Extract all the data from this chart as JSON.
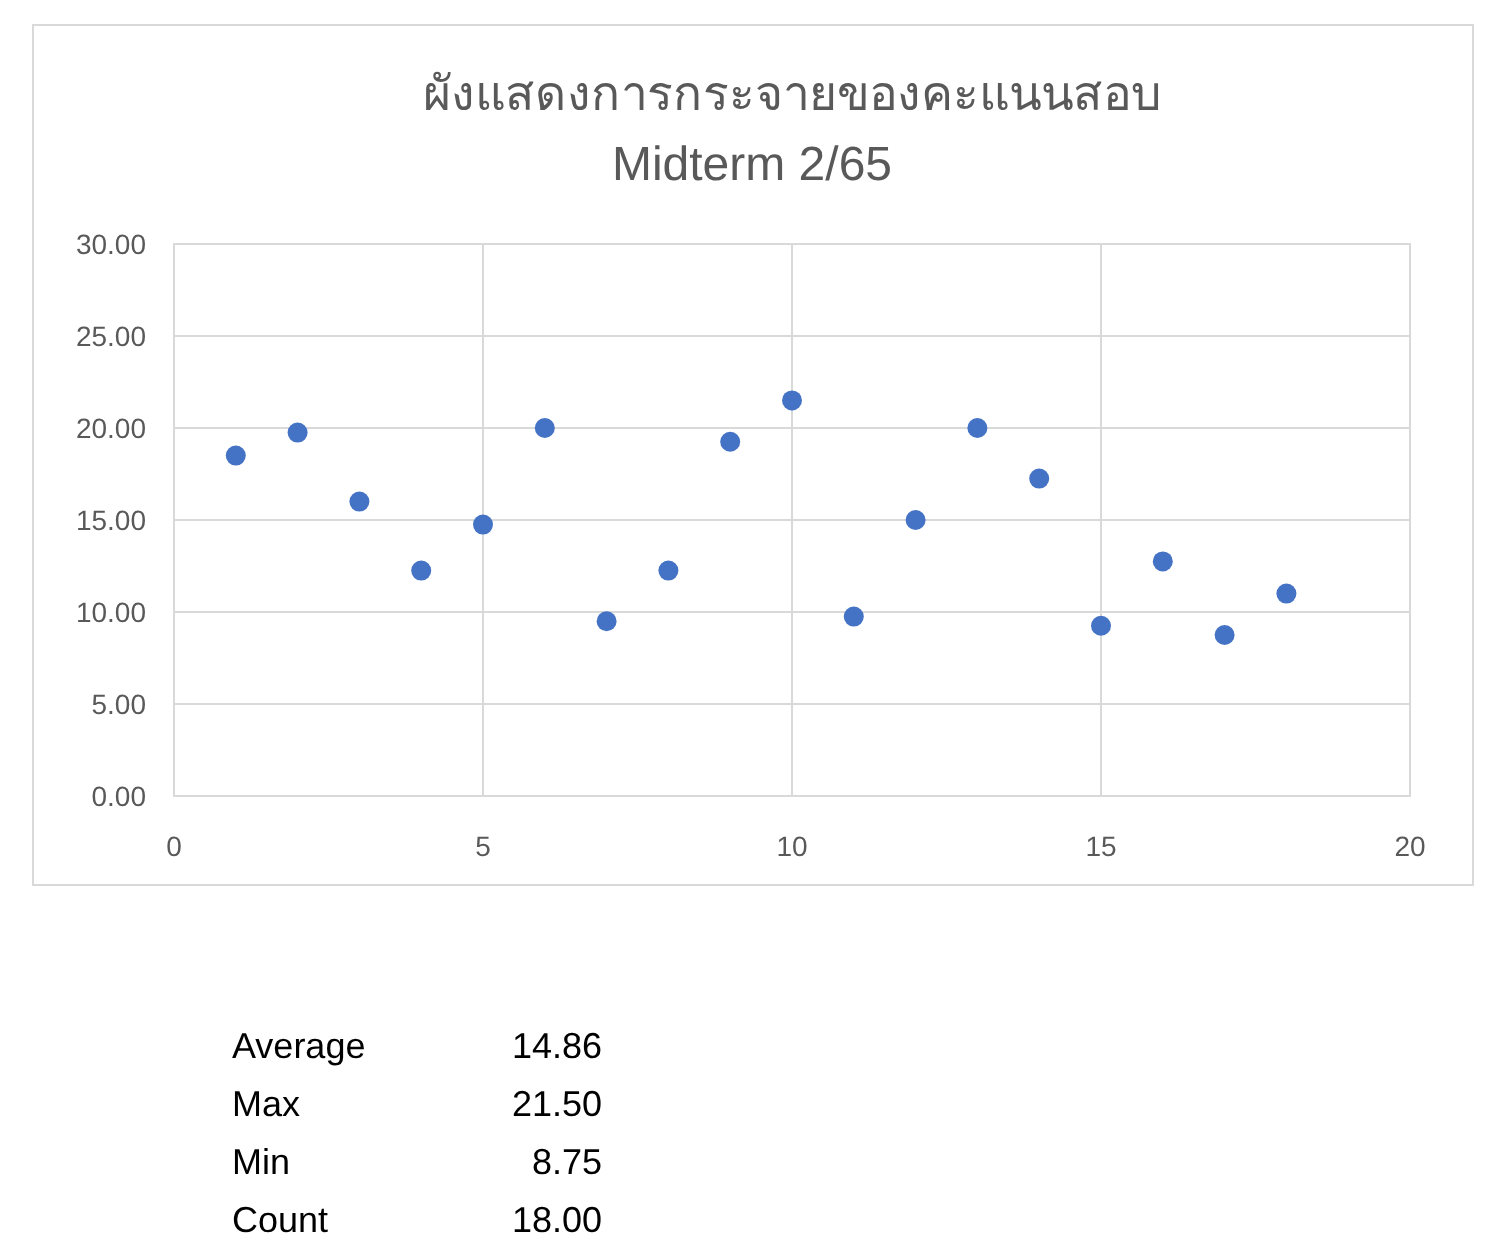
{
  "chart_data": {
    "type": "scatter",
    "title": "ผังแสดงการกระจายของคะแนนสอบ",
    "subtitle": "Midterm 2/65",
    "x": [
      1,
      2,
      3,
      4,
      5,
      6,
      7,
      8,
      9,
      10,
      11,
      12,
      13,
      14,
      15,
      16,
      17,
      18
    ],
    "series": [
      {
        "color": "#4472c4",
        "values": [
          18.5,
          19.75,
          16,
          12.25,
          14.75,
          20,
          9.5,
          12.25,
          19.25,
          21.5,
          9.75,
          15,
          20,
          17.25,
          9.25,
          12.75,
          8.75,
          11
        ]
      }
    ],
    "xlim": [
      0,
      20
    ],
    "xticks": [
      0,
      5,
      10,
      15,
      20
    ],
    "ylim": [
      0,
      30
    ],
    "yticks": [
      {
        "value": 0,
        "label": "0.00"
      },
      {
        "value": 5,
        "label": "5.00"
      },
      {
        "value": 10,
        "label": "10.00"
      },
      {
        "value": 15,
        "label": "15.00"
      },
      {
        "value": 20,
        "label": "20.00"
      },
      {
        "value": 25,
        "label": "25.00"
      },
      {
        "value": 30,
        "label": "30.00"
      }
    ],
    "grid": true,
    "marker": "circle",
    "annotations": [
      "Average",
      "14.86",
      "Max",
      "21.50",
      "Min",
      "8.75",
      "Count",
      "18.00"
    ]
  }
}
